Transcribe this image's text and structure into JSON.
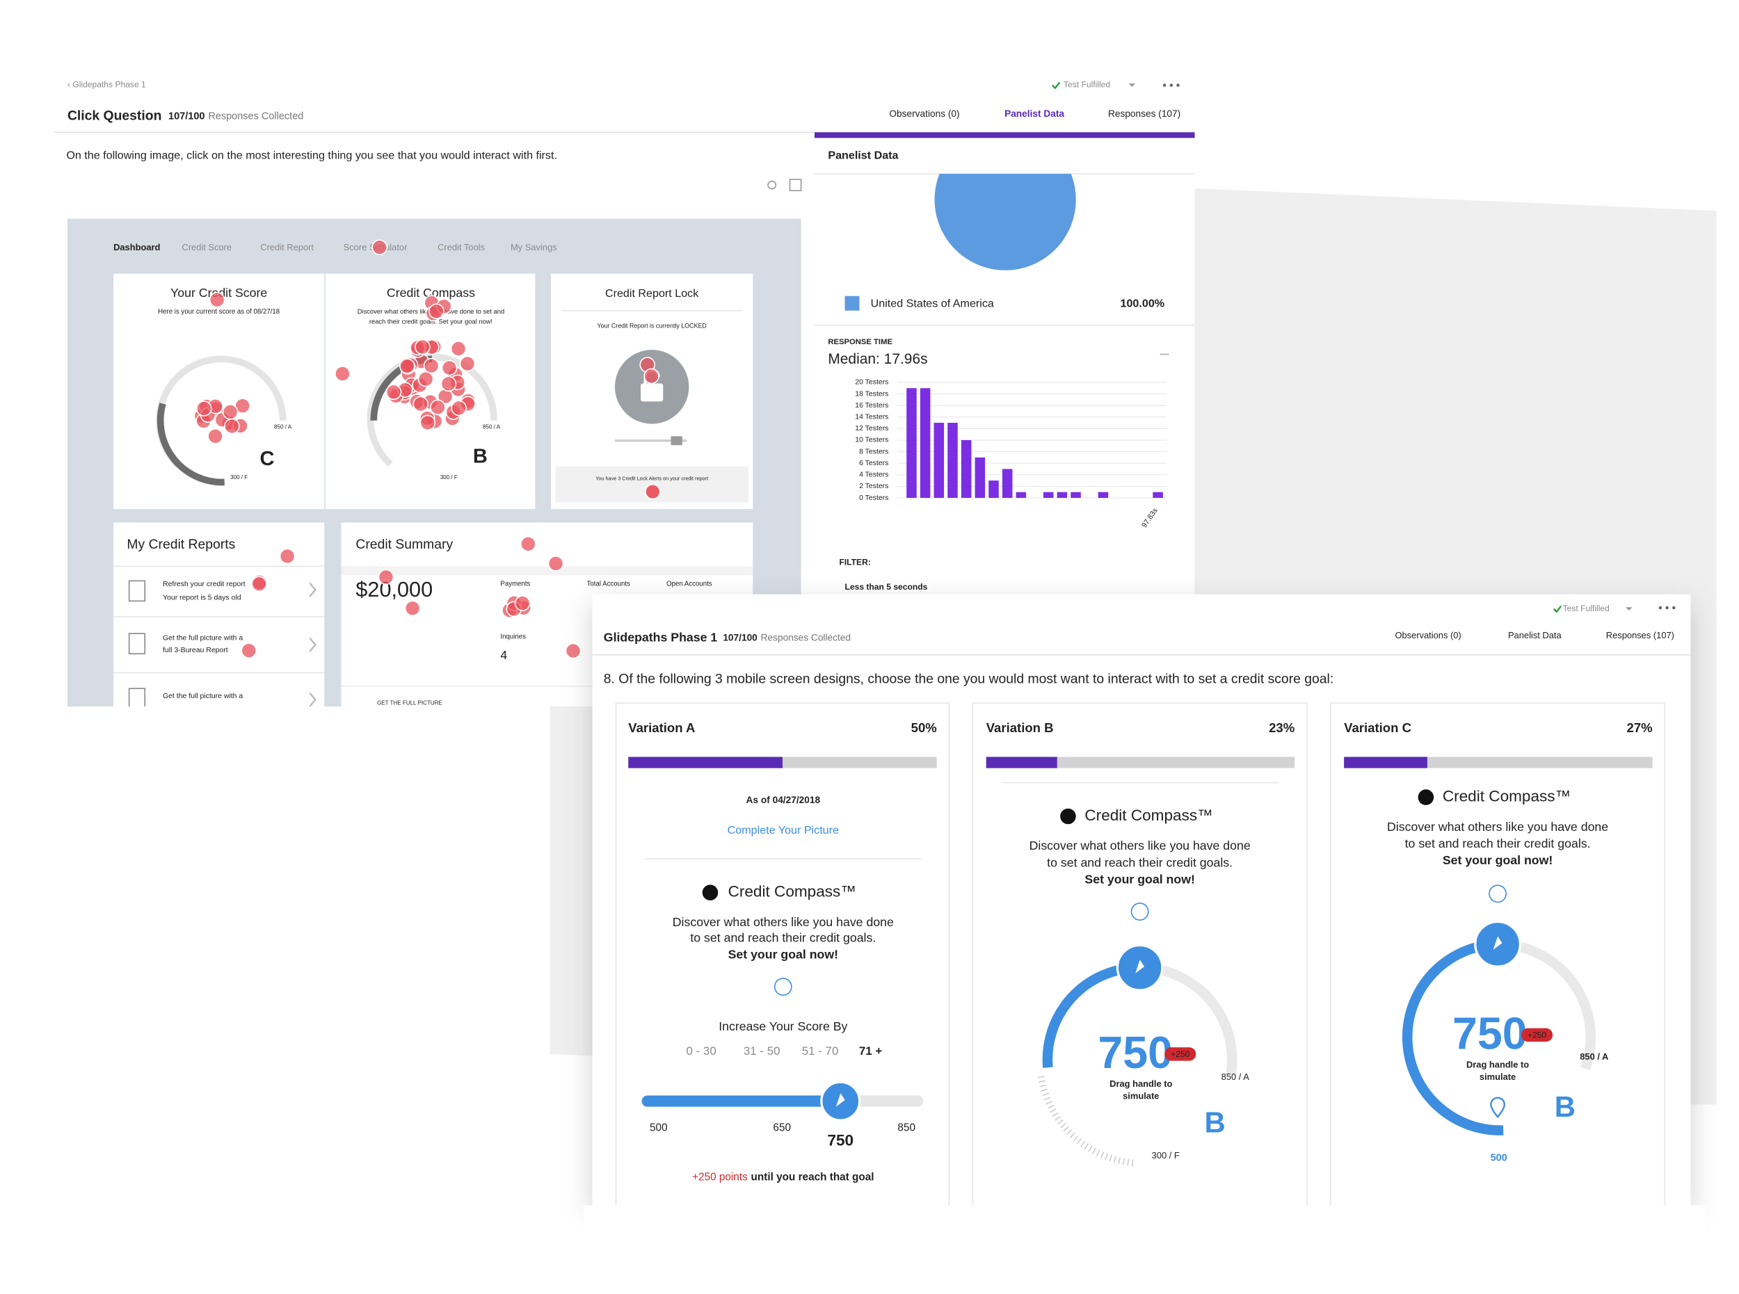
{
  "click_test": {
    "breadcrumb": "‹ Glidepaths Phase 1",
    "status": "Test Fulfilled",
    "title": "Click Question",
    "responses": "107/100",
    "responses_label": "Responses Collected",
    "tabs": [
      "Observations (0)",
      "Panelist Data",
      "Responses (107)"
    ],
    "question": "On the following image, click on the most interesting thing you see that you would interact with first.",
    "stimulus": {
      "nav": [
        "Dashboard",
        "Credit Score",
        "Credit Report",
        "Score Simulator",
        "Credit Tools",
        "My Savings"
      ],
      "credit_score": {
        "title": "Your Credit Score",
        "subtitle": "Here is your current score as of 08/27/18",
        "max": "850 / A",
        "min": "300 / F",
        "grade": "C"
      },
      "credit_compass": {
        "title": "Credit Compass",
        "text": [
          "Discover what others like you have done to set and",
          "reach their credit goals. Set your goal now!"
        ],
        "max": "850 / A",
        "min": "300 / F",
        "grade": "B"
      },
      "report_lock": {
        "title": "Credit Report Lock",
        "status": "Your Credit Report is currently LOCKED",
        "alert": "You have 3 Credit Lock Alerts on your credit report"
      },
      "reports": {
        "title": "My Credit Reports",
        "items": [
          [
            "Refresh your credit report",
            "Your report is 5 days old"
          ],
          [
            "Get the full picture with a",
            "full 3-Bureau Report"
          ],
          [
            "Get the full picture with a"
          ]
        ]
      },
      "summary": {
        "title": "Credit Summary",
        "balance": "$20,000",
        "columns": [
          "Payments",
          "Total Accounts",
          "Open Accounts"
        ],
        "inquiries": "Inquiries",
        "inquiries_value": "4",
        "cta": "GET THE FULL PICTURE"
      }
    },
    "panelist_data": {
      "title": "Panelist Data",
      "pie": {
        "type": "pie",
        "series": [
          {
            "name": "United States of America",
            "value": 100,
            "value_label": "100.00%",
            "color": "#5d9be0"
          }
        ]
      },
      "response_time_label": "RESPONSE TIME",
      "median": "Median: 17.96s",
      "histogram": {
        "type": "bar",
        "values": [
          19,
          19,
          13,
          13,
          10,
          7,
          3,
          5,
          1,
          0,
          1,
          1,
          1,
          0,
          1,
          0,
          0,
          0,
          1
        ],
        "color": "#7c2ee3",
        "ylim": [
          0,
          20
        ],
        "yticks": [
          {
            "value": 0,
            "label": "0 Testers"
          },
          {
            "value": 2,
            "label": "2 Testers"
          },
          {
            "value": 4,
            "label": "4 Testers"
          },
          {
            "value": 6,
            "label": "6 Testers"
          },
          {
            "value": 8,
            "label": "8 Testers"
          },
          {
            "value": 10,
            "label": "10 Testers"
          },
          {
            "value": 12,
            "label": "12 Testers"
          },
          {
            "value": 14,
            "label": "14 Testers"
          },
          {
            "value": 16,
            "label": "16 Testers"
          },
          {
            "value": 18,
            "label": "18 Testers"
          },
          {
            "value": 20,
            "label": "20 Testers"
          }
        ],
        "grid": true,
        "x_end_label": "97.83s"
      },
      "filter_label": "FILTER:",
      "filter": "Less than 5 seconds"
    }
  },
  "survey": {
    "status": "Test Fulfilled",
    "title": "Glidepaths Phase 1",
    "responses": "107/100",
    "responses_label": "Responses Collected",
    "tabs": [
      "Observations (0)",
      "Panelist Data",
      "Responses (107)"
    ],
    "question": "8. Of the following 3 mobile screen designs, choose the one you would most want to interact with to set a credit score goal:",
    "variations": [
      {
        "name": "Variation A",
        "percent": 50,
        "percent_label": "50%",
        "as_of": "As of 04/27/2018",
        "link": "Complete Your Picture",
        "compass": "Credit Compass™",
        "description": [
          "Discover what others like you have done",
          "to set and reach their credit goals."
        ],
        "cta": "Set your goal now!",
        "increase_label": "Increase Your Score By",
        "ranges": [
          "0 - 30",
          "31 - 50",
          "51 - 70",
          "71 +"
        ],
        "slider": {
          "ticks": [
            500,
            650,
            850
          ],
          "value": 750
        },
        "gain": "+250 points",
        "gain_text": "until you reach that goal"
      },
      {
        "name": "Variation B",
        "percent": 23,
        "percent_label": "23%",
        "compass": "Credit Compass™",
        "description": [
          "Discover what others like you have done",
          "to set and reach their credit goals."
        ],
        "cta": "Set your goal now!",
        "score": 750,
        "badge": "+250",
        "hint": [
          "Drag handle to",
          "simulate"
        ],
        "max": "850 / A",
        "min": "300 / F",
        "grade": "B"
      },
      {
        "name": "Variation C",
        "percent": 27,
        "percent_label": "27%",
        "compass": "Credit Compass™",
        "description": [
          "Discover what others like you have done",
          "to set and reach their credit goals."
        ],
        "cta": "Set your goal now!",
        "score": 750,
        "badge": "+250",
        "hint": [
          "Drag handle to",
          "simulate"
        ],
        "max": "850 / A",
        "start": 500,
        "grade": "B"
      }
    ]
  }
}
